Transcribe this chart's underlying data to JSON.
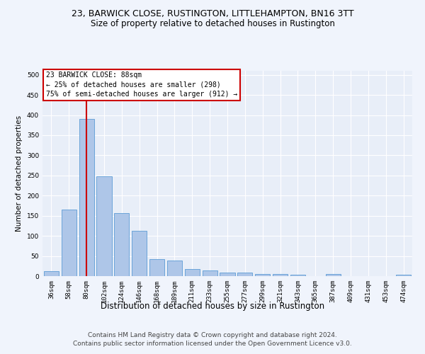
{
  "title1": "23, BARWICK CLOSE, RUSTINGTON, LITTLEHAMPTON, BN16 3TT",
  "title2": "Size of property relative to detached houses in Rustington",
  "xlabel": "Distribution of detached houses by size in Rustington",
  "ylabel": "Number of detached properties",
  "categories": [
    "36sqm",
    "58sqm",
    "80sqm",
    "102sqm",
    "124sqm",
    "146sqm",
    "168sqm",
    "189sqm",
    "211sqm",
    "233sqm",
    "255sqm",
    "277sqm",
    "299sqm",
    "321sqm",
    "343sqm",
    "365sqm",
    "387sqm",
    "409sqm",
    "431sqm",
    "453sqm",
    "474sqm"
  ],
  "values": [
    12,
    165,
    390,
    248,
    157,
    113,
    43,
    39,
    17,
    14,
    9,
    8,
    6,
    5,
    4,
    0,
    5,
    0,
    0,
    0,
    4
  ],
  "bar_color": "#aec6e8",
  "bar_edge_color": "#5b9bd5",
  "bg_color": "#e8eef8",
  "grid_color": "#ffffff",
  "fig_bg_color": "#f0f4fc",
  "vline_x": 2,
  "vline_color": "#cc0000",
  "annotation_text": "23 BARWICK CLOSE: 88sqm\n← 25% of detached houses are smaller (298)\n75% of semi-detached houses are larger (912) →",
  "annotation_box_color": "#cc0000",
  "ylim": [
    0,
    510
  ],
  "yticks": [
    0,
    50,
    100,
    150,
    200,
    250,
    300,
    350,
    400,
    450,
    500
  ],
  "footnote": "Contains HM Land Registry data © Crown copyright and database right 2024.\nContains public sector information licensed under the Open Government Licence v3.0.",
  "title1_fontsize": 9,
  "title2_fontsize": 8.5,
  "xlabel_fontsize": 8.5,
  "ylabel_fontsize": 7.5,
  "tick_fontsize": 6.5,
  "annot_fontsize": 7,
  "footnote_fontsize": 6.5
}
